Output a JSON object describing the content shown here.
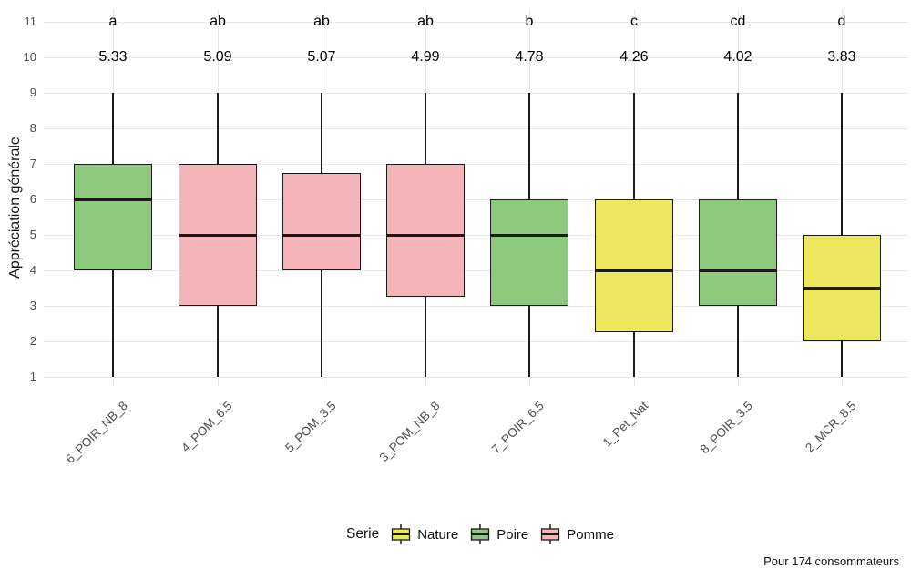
{
  "chart_data": {
    "type": "boxplot",
    "title": "",
    "xlabel": "",
    "ylabel": "Appréciation générale",
    "ylim": [
      1,
      11
    ],
    "yticks": [
      1,
      2,
      3,
      4,
      5,
      6,
      7,
      8,
      9,
      10,
      11
    ],
    "grid": "horizontal major gridlines at each integer + one vertical gridline per category, light gray on white",
    "annotation_rows": {
      "significance_letters_at_y": 11,
      "mean_values_at_y": 10
    },
    "boxes": [
      {
        "category": "6_POIR_NB_8",
        "serie": "Poire",
        "significance_letter": "a",
        "mean": "5.33",
        "whisker_low": 1,
        "q1": 4,
        "median": 6,
        "q3": 7,
        "whisker_high": 9
      },
      {
        "category": "4_POM_6.5",
        "serie": "Pomme",
        "significance_letter": "ab",
        "mean": "5.09",
        "whisker_low": 1,
        "q1": 3,
        "median": 5,
        "q3": 7,
        "whisker_high": 9
      },
      {
        "category": "5_POM_3.5",
        "serie": "Pomme",
        "significance_letter": "ab",
        "mean": "5.07",
        "whisker_low": 1,
        "q1": 4,
        "median": 5,
        "q3": 6.75,
        "whisker_high": 9
      },
      {
        "category": "3_POM_NB_8",
        "serie": "Pomme",
        "significance_letter": "ab",
        "mean": "4.99",
        "whisker_low": 1,
        "q1": 3.25,
        "median": 5,
        "q3": 7,
        "whisker_high": 9
      },
      {
        "category": "7_POIR_6.5",
        "serie": "Poire",
        "significance_letter": "b",
        "mean": "4.78",
        "whisker_low": 1,
        "q1": 3,
        "median": 5,
        "q3": 6,
        "whisker_high": 9
      },
      {
        "category": "1_Pet_Nat",
        "serie": "Nature",
        "significance_letter": "c",
        "mean": "4.26",
        "whisker_low": 1,
        "q1": 2.25,
        "median": 4,
        "q3": 6,
        "whisker_high": 9
      },
      {
        "category": "8_POIR_3.5",
        "serie": "Poire",
        "significance_letter": "cd",
        "mean": "4.02",
        "whisker_low": 1,
        "q1": 3,
        "median": 4,
        "q3": 6,
        "whisker_high": 9
      },
      {
        "category": "2_MCR_8.5",
        "serie": "Nature",
        "significance_letter": "d",
        "mean": "3.83",
        "whisker_low": 1,
        "q1": 2,
        "median": 3.5,
        "q3": 5,
        "whisker_high": 9
      }
    ],
    "legend": {
      "title": "Serie",
      "position": "bottom-center",
      "entries": [
        {
          "label": "Nature",
          "color": "#ece75f"
        },
        {
          "label": "Poire",
          "color": "#8fc97d"
        },
        {
          "label": "Pomme",
          "color": "#f5b3ba"
        }
      ]
    },
    "footnote": "Pour 174 consommateurs",
    "colors": {
      "background": "#ffffff",
      "gridline": "#e8e8e8",
      "box_border": "#1a1a1a",
      "median_line": "#1a1a1a",
      "whisker": "#1a1a1a",
      "axis_text": "#4d4d4d",
      "annotation_text": "#000000"
    }
  }
}
